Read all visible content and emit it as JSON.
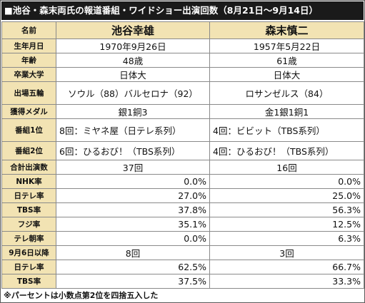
{
  "title": "■池谷・森末両氏の報道番組・ワイドショー出演回数（8月21日～9月14日）",
  "header": {
    "label": "名前",
    "col1": "池谷幸雄",
    "col2": "森末慎二"
  },
  "rows": [
    {
      "label": "生年月日",
      "v1": "1970年9月26日",
      "v2": "1957年5月22日"
    },
    {
      "label": "年齢",
      "v1": "48歳",
      "v2": "61歳"
    },
    {
      "label": "卒業大学",
      "v1": "日体大",
      "v2": "日体大"
    },
    {
      "label": "出場五輪",
      "v1": "ソウル（88）バルセロナ（92）",
      "v2": "ロサンゼルス（84）"
    },
    {
      "label": "獲得メダル",
      "v1": "銀1銅3",
      "v2": "金1銀1銅1"
    },
    {
      "label": "番組1位",
      "v1": "8回：ミヤネ屋（日テレ系列）",
      "v2": "4回：ビビット（TBS系列）"
    },
    {
      "label": "番組2位",
      "v1": "6回：ひるおび！（TBS系列）",
      "v2": "4回：ひるおび！（TBS系列）"
    },
    {
      "label": "合計出演数",
      "v1": "37回",
      "v2": "16回"
    },
    {
      "label": "NHK率",
      "v1": "0.0%",
      "v2": "0.0%"
    },
    {
      "label": "日テレ率",
      "v1": "27.0%",
      "v2": "25.0%"
    },
    {
      "label": "TBS率",
      "v1": "37.8%",
      "v2": "56.3%"
    },
    {
      "label": "フジ率",
      "v1": "35.1%",
      "v2": "12.5%"
    },
    {
      "label": "テレ朝率",
      "v1": "0.0%",
      "v2": "6.3%"
    },
    {
      "label": "9月6日以降",
      "v1": "8回",
      "v2": "3回"
    },
    {
      "label": "日テレ率",
      "v1": "62.5%",
      "v2": "66.7%"
    },
    {
      "label": "TBS率",
      "v1": "37.5%",
      "v2": "33.3%"
    }
  ],
  "footnote": "※パーセントは小数点第2位を四捨五入した",
  "colors": {
    "title_bg": "#1a1a1a",
    "label_bg": "#f2e3b3",
    "border": "#8a8a8a"
  }
}
